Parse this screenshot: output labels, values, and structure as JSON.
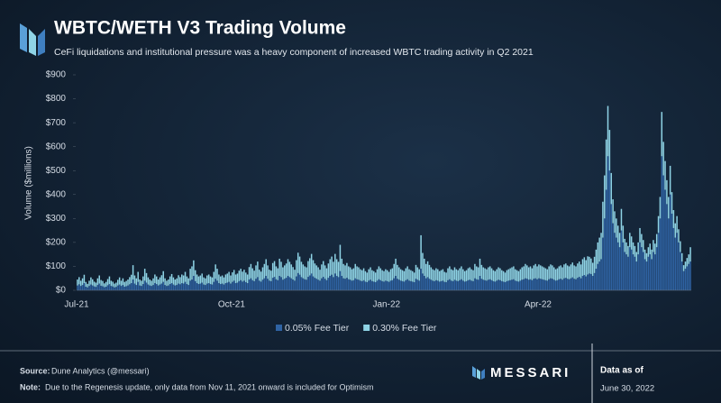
{
  "chart_data": {
    "type": "stacked_bar",
    "title": "WBTC/WETH V3 Trading Volume",
    "subtitle": "CeFi liquidations and institutional pressure was a heavy component of increased WBTC trading activity in Q2 2021",
    "y_label": "Volume ($millions)",
    "ylim": [
      0,
      900
    ],
    "yticks": [
      {
        "value": 0,
        "label": "$0"
      },
      {
        "value": 100,
        "label": "$100"
      },
      {
        "value": 200,
        "label": "$200"
      },
      {
        "value": 300,
        "label": "$300"
      },
      {
        "value": 400,
        "label": "$400"
      },
      {
        "value": 500,
        "label": "$500"
      },
      {
        "value": 600,
        "label": "$600"
      },
      {
        "value": 700,
        "label": "$700"
      },
      {
        "value": 800,
        "label": "$800"
      },
      {
        "value": 900,
        "label": "$900"
      }
    ],
    "grid": false,
    "legend": "bottom",
    "categories": [
      "Jul-21",
      null,
      null,
      null,
      null,
      null,
      null,
      null,
      null,
      null,
      null,
      null,
      null,
      null,
      null,
      null,
      null,
      null,
      null,
      null,
      null,
      null,
      null,
      null,
      null,
      null,
      null,
      null,
      null,
      null,
      null,
      null,
      null,
      null,
      null,
      null,
      null,
      null,
      null,
      null,
      null,
      null,
      null,
      null,
      null,
      null,
      null,
      null,
      null,
      null,
      null,
      null,
      null,
      null,
      null,
      null,
      null,
      null,
      null,
      null,
      null,
      null,
      null,
      null,
      null,
      null,
      null,
      null,
      null,
      null,
      null,
      null,
      null,
      null,
      null,
      null,
      null,
      null,
      null,
      null,
      null,
      null,
      null,
      null,
      null,
      null,
      null,
      null,
      null,
      null,
      null,
      null,
      "Oct-21",
      null,
      null,
      null,
      null,
      null,
      null,
      null,
      null,
      null,
      null,
      null,
      null,
      null,
      null,
      null,
      null,
      null,
      null,
      null,
      null,
      null,
      null,
      null,
      null,
      null,
      null,
      null,
      null,
      null,
      null,
      null,
      null,
      null,
      null,
      null,
      null,
      null,
      null,
      null,
      null,
      null,
      null,
      null,
      null,
      null,
      null,
      null,
      null,
      null,
      null,
      null,
      null,
      null,
      null,
      null,
      null,
      null,
      null,
      null,
      null,
      null,
      null,
      null,
      null,
      null,
      null,
      null,
      null,
      null,
      null,
      null,
      null,
      null,
      null,
      null,
      null,
      null,
      null,
      null,
      null,
      null,
      null,
      null,
      null,
      null,
      null,
      null,
      null,
      null,
      null,
      null,
      "Jan-22",
      null,
      null,
      null,
      null,
      null,
      null,
      null,
      null,
      null,
      null,
      null,
      null,
      null,
      null,
      null,
      null,
      null,
      null,
      null,
      null,
      null,
      null,
      null,
      null,
      null,
      null,
      null,
      null,
      null,
      null,
      null,
      null,
      null,
      null,
      null,
      null,
      null,
      null,
      null,
      null,
      null,
      null,
      null,
      null,
      null,
      null,
      null,
      null,
      null,
      null,
      null,
      null,
      null,
      null,
      null,
      null,
      null,
      null,
      null,
      null,
      null,
      null,
      null,
      null,
      null,
      null,
      null,
      null,
      null,
      null,
      null,
      null,
      null,
      null,
      null,
      null,
      null,
      null,
      null,
      null,
      null,
      null,
      null,
      null,
      null,
      null,
      null,
      null,
      null,
      "Apr-22",
      null,
      null,
      null,
      null,
      null,
      null,
      null,
      null,
      null,
      null,
      null,
      null,
      null,
      null,
      null,
      null,
      null,
      null,
      null,
      null,
      null,
      null,
      null,
      null,
      null,
      null,
      null,
      null,
      null,
      null,
      null,
      null,
      null,
      null,
      null,
      null,
      null,
      null,
      null,
      null,
      null,
      null,
      null,
      null,
      null,
      null,
      null,
      null,
      null,
      null,
      null,
      null,
      null,
      null,
      null,
      null,
      null,
      null,
      null,
      null,
      null,
      null,
      null,
      null,
      null,
      null,
      null,
      null,
      null,
      null,
      null,
      null,
      null,
      null,
      null,
      null,
      null,
      null,
      null,
      null,
      null,
      null,
      null,
      null,
      null,
      null,
      null,
      null,
      null,
      null
    ],
    "series": [
      {
        "name": "0.05% Fee Tier",
        "color": "#2f63a3",
        "values": [
          20,
          25,
          18,
          22,
          30,
          15,
          12,
          18,
          24,
          20,
          16,
          14,
          22,
          28,
          19,
          17,
          13,
          15,
          21,
          26,
          18,
          16,
          12,
          14,
          20,
          24,
          18,
          22,
          15,
          17,
          20,
          25,
          30,
          45,
          28,
          22,
          35,
          20,
          18,
          26,
          40,
          32,
          24,
          20,
          18,
          22,
          30,
          26,
          20,
          24,
          28,
          35,
          22,
          18,
          20,
          26,
          30,
          24,
          20,
          22,
          28,
          25,
          30,
          28,
          35,
          26,
          22,
          40,
          45,
          60,
          38,
          30,
          26,
          28,
          32,
          24,
          22,
          28,
          30,
          26,
          24,
          35,
          48,
          40,
          30,
          26,
          28,
          24,
          30,
          32,
          35,
          28,
          35,
          40,
          30,
          32,
          38,
          42,
          36,
          40,
          34,
          30,
          45,
          50,
          42,
          38,
          48,
          55,
          40,
          36,
          44,
          50,
          60,
          48,
          40,
          38,
          52,
          56,
          46,
          42,
          60,
          55,
          44,
          48,
          52,
          60,
          55,
          50,
          45,
          40,
          58,
          72,
          65,
          55,
          50,
          46,
          44,
          56,
          62,
          70,
          58,
          52,
          48,
          44,
          40,
          50,
          56,
          48,
          42,
          52,
          60,
          65,
          55,
          70,
          60,
          55,
          80,
          60,
          50,
          48,
          52,
          46,
          44,
          40,
          42,
          50,
          46,
          44,
          40,
          38,
          42,
          36,
          34,
          40,
          44,
          38,
          36,
          34,
          40,
          46,
          42,
          38,
          36,
          40,
          38,
          35,
          40,
          42,
          50,
          60,
          48,
          44,
          40,
          38,
          36,
          42,
          46,
          40,
          38,
          36,
          34,
          48,
          44,
          40,
          90,
          70,
          60,
          50,
          55,
          48,
          44,
          40,
          38,
          42,
          40,
          36,
          38,
          40,
          35,
          34,
          42,
          46,
          40,
          38,
          44,
          40,
          38,
          42,
          46,
          40,
          36,
          38,
          42,
          44,
          40,
          38,
          50,
          46,
          44,
          60,
          48,
          44,
          42,
          40,
          44,
          46,
          42,
          38,
          36,
          40,
          44,
          42,
          38,
          36,
          34,
          38,
          40,
          42,
          44,
          46,
          40,
          38,
          36,
          40,
          44,
          46,
          50,
          48,
          44,
          46,
          42,
          48,
          50,
          46,
          50,
          48,
          46,
          44,
          42,
          40,
          46,
          50,
          48,
          44,
          40,
          42,
          46,
          48,
          44,
          50,
          52,
          48,
          46,
          50,
          54,
          48,
          46,
          52,
          56,
          50,
          60,
          64,
          58,
          66,
          70,
          68,
          60,
          72,
          90,
          110,
          120,
          130,
          220,
          300,
          420,
          560,
          500,
          360,
          280,
          240,
          220,
          200,
          180,
          250,
          200,
          160,
          150,
          140,
          180,
          170,
          150,
          140,
          120,
          150,
          200,
          180,
          160,
          130,
          120,
          140,
          150,
          130,
          160,
          150,
          180,
          240,
          300,
          560,
          480,
          420,
          360,
          300,
          400,
          320,
          260,
          220,
          240,
          200,
          160,
          120,
          80,
          90,
          100,
          110,
          120
        ]
      },
      {
        "name": "0.30% Fee Tier",
        "color": "#8fd4e6",
        "values": [
          25,
          30,
          22,
          28,
          35,
          20,
          15,
          22,
          30,
          26,
          20,
          18,
          28,
          34,
          24,
          22,
          16,
          20,
          26,
          32,
          22,
          20,
          16,
          18,
          24,
          30,
          22,
          28,
          20,
          22,
          25,
          30,
          35,
          60,
          34,
          28,
          42,
          25,
          22,
          32,
          50,
          40,
          30,
          25,
          22,
          28,
          36,
          32,
          25,
          30,
          35,
          45,
          28,
          22,
          25,
          32,
          38,
          30,
          25,
          28,
          35,
          30,
          36,
          34,
          42,
          32,
          28,
          50,
          55,
          65,
          46,
          36,
          32,
          34,
          38,
          30,
          28,
          34,
          36,
          32,
          30,
          42,
          60,
          50,
          36,
          32,
          34,
          30,
          36,
          38,
          42,
          34,
          40,
          45,
          36,
          38,
          44,
          48,
          42,
          46,
          40,
          36,
          52,
          60,
          50,
          44,
          56,
          65,
          46,
          42,
          52,
          60,
          70,
          56,
          46,
          44,
          62,
          66,
          54,
          50,
          72,
          64,
          52,
          56,
          60,
          70,
          64,
          58,
          52,
          46,
          68,
          85,
          76,
          64,
          58,
          54,
          52,
          66,
          72,
          82,
          68,
          60,
          56,
          52,
          46,
          58,
          66,
          56,
          50,
          60,
          70,
          76,
          64,
          82,
          70,
          64,
          110,
          72,
          60,
          56,
          62,
          54,
          52,
          48,
          50,
          60,
          54,
          52,
          48,
          46,
          50,
          44,
          40,
          48,
          52,
          46,
          44,
          40,
          48,
          54,
          50,
          46,
          44,
          48,
          46,
          42,
          48,
          50,
          60,
          72,
          58,
          52,
          48,
          46,
          44,
          50,
          54,
          48,
          46,
          44,
          40,
          58,
          52,
          48,
          140,
          86,
          72,
          60,
          66,
          58,
          52,
          48,
          46,
          50,
          48,
          44,
          46,
          48,
          42,
          40,
          50,
          54,
          48,
          46,
          52,
          48,
          46,
          50,
          54,
          48,
          44,
          46,
          50,
          52,
          48,
          46,
          60,
          54,
          52,
          72,
          58,
          52,
          50,
          48,
          52,
          54,
          50,
          46,
          44,
          48,
          52,
          50,
          46,
          44,
          40,
          46,
          48,
          50,
          52,
          54,
          48,
          46,
          44,
          48,
          52,
          54,
          60,
          56,
          52,
          54,
          50,
          56,
          60,
          54,
          58,
          56,
          54,
          52,
          50,
          48,
          54,
          58,
          56,
          52,
          48,
          50,
          54,
          56,
          52,
          58,
          60,
          56,
          54,
          58,
          62,
          56,
          54,
          60,
          64,
          58,
          70,
          74,
          68,
          76,
          70,
          65,
          55,
          68,
          80,
          90,
          100,
          110,
          150,
          180,
          210,
          210,
          170,
          130,
          100,
          90,
          80,
          70,
          60,
          90,
          70,
          55,
          50,
          45,
          60,
          55,
          50,
          45,
          40,
          50,
          60,
          55,
          50,
          40,
          35,
          40,
          45,
          40,
          50,
          45,
          55,
          70,
          90,
          185,
          140,
          120,
          100,
          90,
          120,
          90,
          75,
          60,
          70,
          55,
          45,
          35,
          25,
          30,
          35,
          40,
          60
        ]
      }
    ]
  },
  "footer": {
    "source_label": "Source:",
    "source": "Dune Analytics (@messari)",
    "note_label": "Note:",
    "note": "Due to the Regenesis update, only data from Nov 11, 2021 onward is included for Optimism",
    "brand": "MESSARI",
    "date_label": "Data as of",
    "date": "June 30, 2022"
  }
}
